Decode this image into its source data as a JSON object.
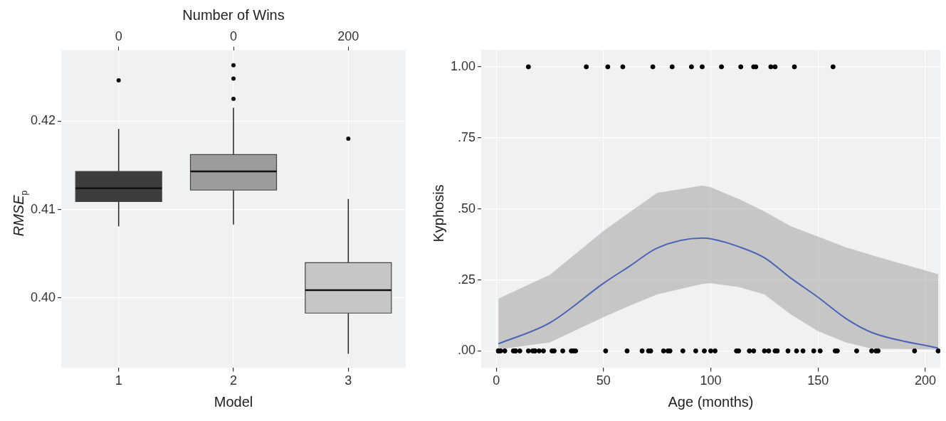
{
  "chart_data": [
    {
      "type": "box",
      "categories": [
        "1",
        "2",
        "3"
      ],
      "xlabel": "Model",
      "ylabel": "RMSE$_{p}$",
      "x2label": "Number of Wins",
      "colors": [
        "#3d3d3d",
        "#9c9c9e",
        "#c6c6c8"
      ],
      "boxes": [
        {
          "low": 0.4081,
          "q1": 0.4109,
          "median": 0.4124,
          "q3": 0.4143,
          "high": 0.4191,
          "outliers": [
            0.4246
          ]
        },
        {
          "low": 0.4083,
          "q1": 0.4122,
          "median": 0.4143,
          "q3": 0.4162,
          "high": 0.4215,
          "outliers": [
            0.4263,
            0.4248,
            0.4225
          ]
        },
        {
          "low": 0.3937,
          "q1": 0.3983,
          "median": 0.4009,
          "q3": 0.404,
          "high": 0.4112,
          "outliers": [
            0.418
          ]
        }
      ],
      "ylim": [
        0.3921,
        0.428
      ],
      "yticks": [
        {
          "value": 0.4,
          "label": "0.40"
        },
        {
          "value": 0.41,
          "label": "0.41"
        },
        {
          "value": 0.42,
          "label": "0.42"
        }
      ],
      "annotations": [
        "0",
        "0",
        "200"
      ],
      "grid": true,
      "legend": false
    },
    {
      "type": "scatter",
      "xlabel": "Age (months)",
      "ylabel": "Kyphosis",
      "marker": "circle",
      "grid": true,
      "legend": false,
      "xlim": [
        -7,
        207
      ],
      "xticks": [
        0,
        50,
        100,
        150,
        200
      ],
      "ylim": [
        -0.06,
        1.06
      ],
      "yticks": [
        {
          "value": 0,
          "label": ".00"
        },
        {
          "value": 0.25,
          "label": ".25"
        },
        {
          "value": 0.5,
          "label": ".50"
        },
        {
          "value": 0.75,
          "label": ".75"
        },
        {
          "value": 1,
          "label": "1.00"
        }
      ],
      "series": [
        {
          "type": "scatter",
          "color": "#000000",
          "x": [
            1,
            1,
            2,
            4,
            8,
            9,
            9,
            11,
            15,
            17,
            18,
            18,
            20,
            22,
            26,
            27,
            31,
            35,
            36,
            37,
            51,
            61,
            68,
            71,
            72,
            78,
            80,
            81,
            87,
            93,
            97,
            100,
            102,
            112,
            113,
            118,
            120,
            125,
            127,
            130,
            131,
            136,
            140,
            143,
            148,
            151,
            158,
            159,
            168,
            175,
            177,
            178,
            195,
            206
          ],
          "values": [
            0,
            0,
            0,
            0,
            0,
            0,
            0,
            0,
            0,
            0,
            0,
            0,
            0,
            0,
            0,
            0,
            0,
            0,
            0,
            0,
            0,
            0,
            0,
            0,
            0,
            0,
            0,
            0,
            0,
            0,
            0,
            0,
            0,
            0,
            0,
            0,
            0,
            0,
            0,
            0,
            0,
            0,
            0,
            0,
            0,
            0,
            0,
            0,
            0,
            0,
            0,
            0,
            0,
            0
          ]
        },
        {
          "type": "scatter",
          "color": "#000000",
          "x": [
            15,
            42,
            52,
            59,
            73,
            82,
            91,
            96,
            105,
            114,
            120,
            121,
            128,
            130,
            139,
            157
          ],
          "values": [
            1,
            1,
            1,
            1,
            1,
            1,
            1,
            1,
            1,
            1,
            1,
            1,
            1,
            1,
            1,
            1
          ]
        },
        {
          "type": "line",
          "color": "#4a63b5",
          "marker": "none",
          "x": [
            1,
            25,
            50,
            62.5,
            75,
            96,
            100,
            113,
            125,
            137,
            150,
            163,
            175,
            206
          ],
          "values": [
            0.025,
            0.099,
            0.238,
            0.3,
            0.362,
            0.397,
            0.395,
            0.367,
            0.328,
            0.258,
            0.189,
            0.114,
            0.065,
            0.01
          ],
          "lower": [
            0.005,
            0.03,
            0.119,
            0.16,
            0.199,
            0.236,
            0.238,
            0.225,
            0.199,
            0.13,
            0.069,
            0.03,
            0.008,
            0.005
          ],
          "upper": [
            0.184,
            0.268,
            0.422,
            0.49,
            0.556,
            0.582,
            0.576,
            0.535,
            0.491,
            0.44,
            0.402,
            0.365,
            0.337,
            0.27
          ]
        }
      ]
    }
  ]
}
